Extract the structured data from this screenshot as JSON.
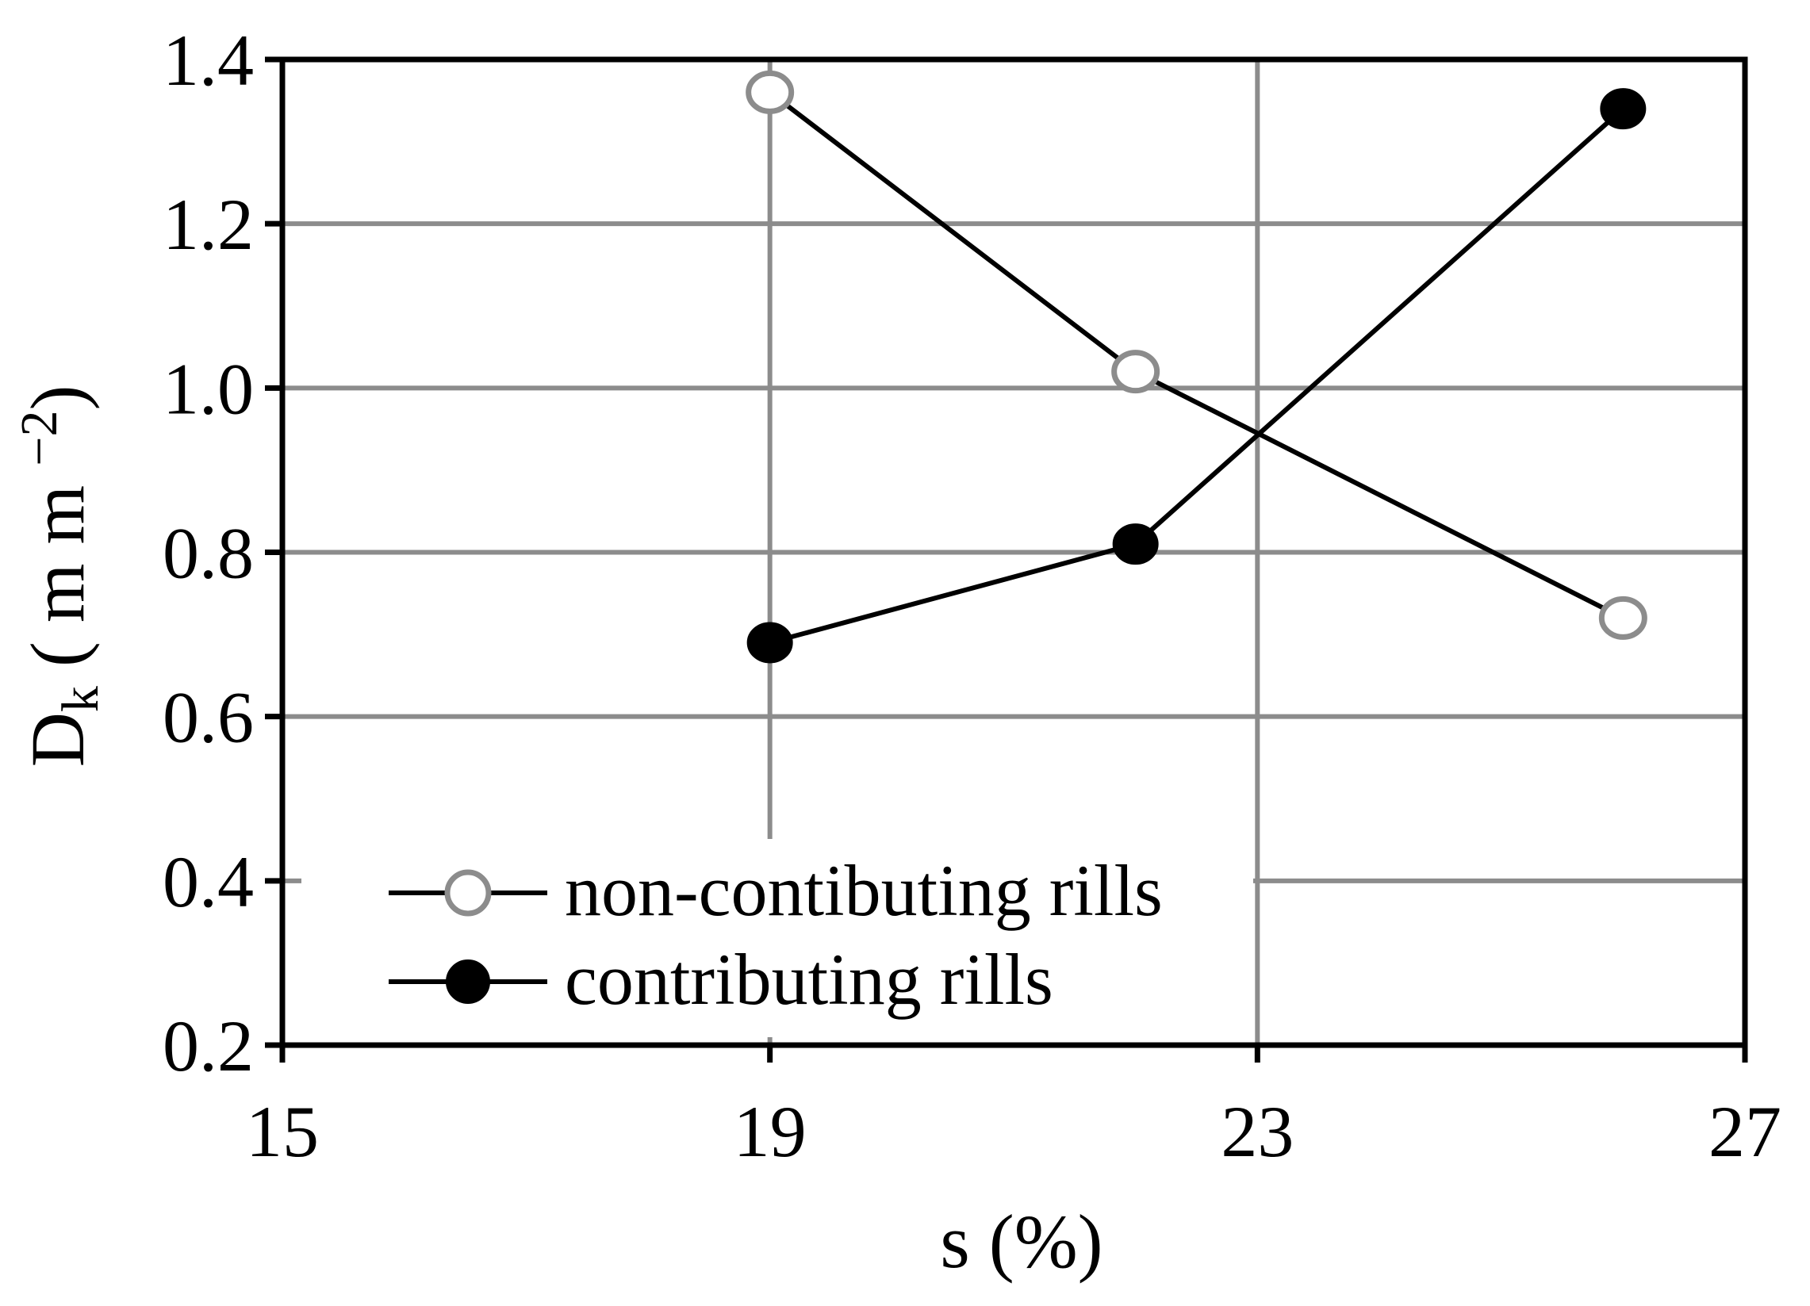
{
  "chart_data": {
    "type": "line",
    "xlabel": "s (%)",
    "ylabel": {
      "main": "D",
      "sub": "k",
      "unit_open": " ( m m ",
      "unit_exp": "−2",
      "unit_close": ")"
    },
    "xlim": [
      15,
      27
    ],
    "ylim": [
      0.2,
      1.4
    ],
    "xticks": [
      15,
      19,
      23,
      27
    ],
    "xtick_labels": [
      "15",
      "19",
      "23",
      "27"
    ],
    "yticks": [
      0.2,
      0.4,
      0.6,
      0.8,
      1.0,
      1.2,
      1.4
    ],
    "ytick_labels": [
      "0.2",
      "0.4",
      "0.6",
      "0.8",
      "1.0",
      "1.2",
      "1.4"
    ],
    "grid": true,
    "legend_position": "lower-left",
    "series": [
      {
        "name": "non-contibuting rills",
        "marker": "open-circle",
        "x": [
          19,
          22,
          26
        ],
        "y": [
          1.36,
          1.02,
          0.72
        ]
      },
      {
        "name": "contributing rills",
        "marker": "filled-circle",
        "x": [
          19,
          22,
          26
        ],
        "y": [
          0.69,
          0.81,
          1.34
        ]
      }
    ]
  },
  "colors": {
    "axis": "#000000",
    "grid": "#8c8c8c",
    "line": "#000000",
    "open_marker_stroke": "#8c8c8c",
    "open_marker_fill": "#ffffff",
    "filled_marker": "#000000"
  }
}
